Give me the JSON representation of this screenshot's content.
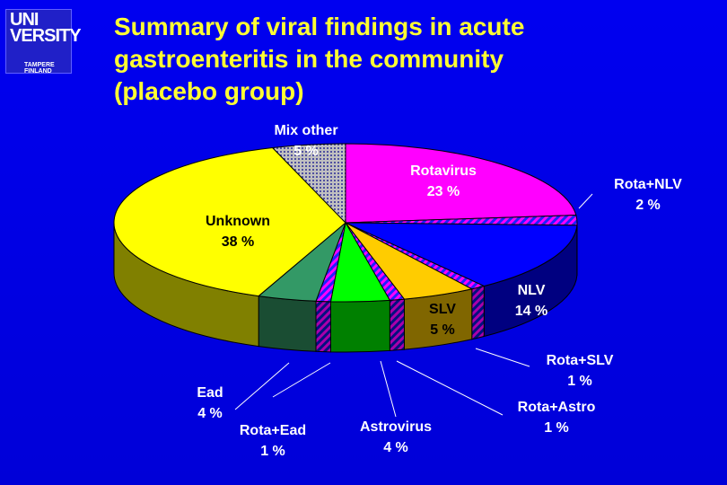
{
  "title_lines": [
    "Summary of viral findings in acute",
    "gastroenteritis in the community",
    "(placebo group)"
  ],
  "logo": {
    "text_top": "UNI VERSITY",
    "text_bottom": "TAMPERE FINLAND"
  },
  "chart_data": {
    "type": "pie",
    "title": "Summary of viral findings in acute gastroenteritis in the community (placebo group)",
    "slices": [
      {
        "name": "Rotavirus",
        "value_label": "23 %",
        "value": 23,
        "color": "#ff00ff"
      },
      {
        "name": "Rota+NLV",
        "value_label": "2 %",
        "value": 2,
        "color": "#ff00ff"
      },
      {
        "name": "NLV",
        "value_label": "14 %",
        "value": 14,
        "color": "#0000ff"
      },
      {
        "name": "Rota+SLV",
        "value_label": "1 %",
        "value": 1,
        "color": "#ff00ff"
      },
      {
        "name": "SLV",
        "value_label": "5 %",
        "value": 5,
        "color": "#ffcc00"
      },
      {
        "name": "Rota+Astro",
        "value_label": "1 %",
        "value": 1,
        "color": "#00ff00"
      },
      {
        "name": "Astrovirus",
        "value_label": "4 %",
        "value": 4,
        "color": "#00ff00"
      },
      {
        "name": "Rota+Ead",
        "value_label": "1 %",
        "value": 1,
        "color": "#ff00ff"
      },
      {
        "name": "Ead",
        "value_label": "4 %",
        "value": 4,
        "color": "#339966"
      },
      {
        "name": "Unknown",
        "value_label": "38 %",
        "value": 38,
        "color": "#ffff00"
      },
      {
        "name": "Mix other",
        "value_label": "5 %",
        "value": 5,
        "color": "#c0c0c0"
      }
    ]
  }
}
